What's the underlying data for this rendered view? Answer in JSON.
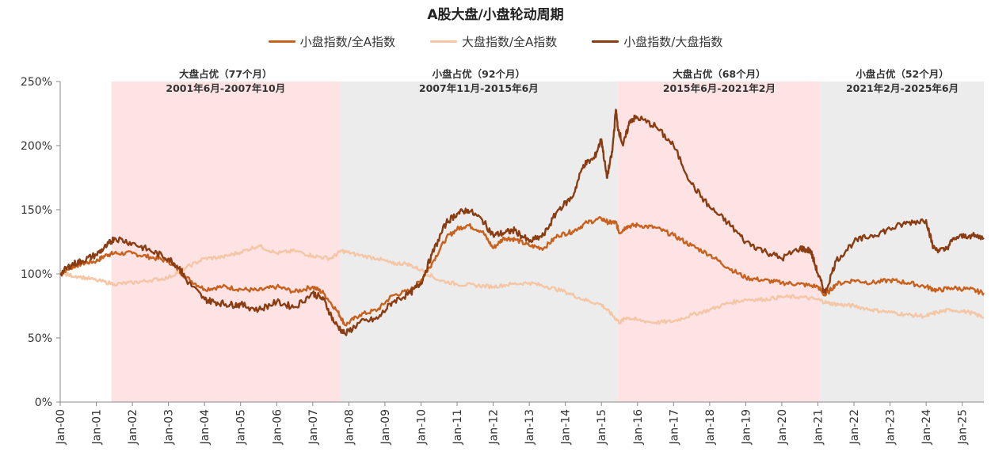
{
  "chart_data": {
    "type": "line",
    "title": "A股大盘/小盘轮动周期",
    "xlabel": "",
    "ylabel": "",
    "ylim": [
      0,
      250
    ],
    "yticks": [
      "0%",
      "50%",
      "100%",
      "150%",
      "200%",
      "250%"
    ],
    "xlim": [
      2000.0,
      2025.6
    ],
    "xticks": [
      "Jan-00",
      "Jan-01",
      "Jan-02",
      "Jan-03",
      "Jan-04",
      "Jan-05",
      "Jan-06",
      "Jan-07",
      "Jan-08",
      "Jan-09",
      "Jan-10",
      "Jan-11",
      "Jan-12",
      "Jan-13",
      "Jan-14",
      "Jan-15",
      "Jan-16",
      "Jan-17",
      "Jan-18",
      "Jan-19",
      "Jan-20",
      "Jan-21",
      "Jan-22",
      "Jan-23",
      "Jan-24",
      "Jan-25"
    ],
    "grid": false,
    "legend_position": "top-center",
    "periods": [
      {
        "start": 2001.42,
        "end": 2007.75,
        "color": "#fde3e3",
        "label1": "大盘占优（77个月）",
        "label2": "2001年6月-2007年10月"
      },
      {
        "start": 2007.75,
        "end": 2015.45,
        "color": "#ececec",
        "label1": "小盘占优（92个月）",
        "label2": "2007年11月-2015年6月"
      },
      {
        "start": 2015.45,
        "end": 2021.08,
        "color": "#fde3e3",
        "label1": "大盘占优（68个月）",
        "label2": "2015年6月-2021年2月"
      },
      {
        "start": 2021.08,
        "end": 2025.6,
        "color": "#ececec",
        "label1": "小盘占优（52个月）",
        "label2": "2021年2月-2025年6月"
      }
    ],
    "series": [
      {
        "name": "小盘指数/全A指数",
        "color": "#c8611e",
        "points": [
          [
            2000,
            100
          ],
          [
            2000.3,
            105
          ],
          [
            2000.6,
            108
          ],
          [
            2001,
            110
          ],
          [
            2001.3,
            115
          ],
          [
            2001.5,
            116
          ],
          [
            2002,
            116
          ],
          [
            2002.5,
            113
          ],
          [
            2003,
            110
          ],
          [
            2003.5,
            97
          ],
          [
            2004,
            88
          ],
          [
            2004.5,
            90
          ],
          [
            2005,
            88
          ],
          [
            2005.5,
            87
          ],
          [
            2006,
            90
          ],
          [
            2006.5,
            86
          ],
          [
            2007,
            90
          ],
          [
            2007.3,
            85
          ],
          [
            2007.7,
            70
          ],
          [
            2007.9,
            60
          ],
          [
            2008.3,
            68
          ],
          [
            2008.8,
            72
          ],
          [
            2009.2,
            83
          ],
          [
            2009.7,
            87
          ],
          [
            2010,
            95
          ],
          [
            2010.3,
            108
          ],
          [
            2010.7,
            128
          ],
          [
            2011,
            135
          ],
          [
            2011.3,
            138
          ],
          [
            2011.7,
            133
          ],
          [
            2012,
            120
          ],
          [
            2012.3,
            128
          ],
          [
            2012.6,
            127
          ],
          [
            2013,
            122
          ],
          [
            2013.4,
            120
          ],
          [
            2013.8,
            130
          ],
          [
            2014.2,
            133
          ],
          [
            2014.6,
            140
          ],
          [
            2015,
            143
          ],
          [
            2015.2,
            140
          ],
          [
            2015.4,
            140
          ],
          [
            2015.5,
            132
          ],
          [
            2015.7,
            137
          ],
          [
            2016,
            138
          ],
          [
            2016.5,
            136
          ],
          [
            2017,
            130
          ],
          [
            2017.5,
            122
          ],
          [
            2018,
            115
          ],
          [
            2018.5,
            105
          ],
          [
            2019,
            97
          ],
          [
            2019.5,
            95
          ],
          [
            2020,
            93
          ],
          [
            2020.5,
            92
          ],
          [
            2021,
            90
          ],
          [
            2021.2,
            83
          ],
          [
            2021.5,
            92
          ],
          [
            2022,
            95
          ],
          [
            2022.5,
            93
          ],
          [
            2023,
            95
          ],
          [
            2023.5,
            93
          ],
          [
            2024,
            90
          ],
          [
            2024.3,
            87
          ],
          [
            2024.7,
            89
          ],
          [
            2025.2,
            88
          ],
          [
            2025.6,
            85
          ]
        ]
      },
      {
        "name": "大盘指数/全A指数",
        "color": "#f5c6a5",
        "points": [
          [
            2000,
            100
          ],
          [
            2000.5,
            98
          ],
          [
            2001,
            95
          ],
          [
            2001.5,
            92
          ],
          [
            2002,
            93
          ],
          [
            2002.5,
            95
          ],
          [
            2003,
            97
          ],
          [
            2003.5,
            105
          ],
          [
            2004,
            112
          ],
          [
            2004.5,
            113
          ],
          [
            2005,
            117
          ],
          [
            2005.5,
            122
          ],
          [
            2006,
            116
          ],
          [
            2006.5,
            118
          ],
          [
            2007,
            114
          ],
          [
            2007.5,
            112
          ],
          [
            2007.8,
            118
          ],
          [
            2008.2,
            115
          ],
          [
            2008.8,
            112
          ],
          [
            2009.2,
            108
          ],
          [
            2009.6,
            108
          ],
          [
            2010,
            103
          ],
          [
            2010.5,
            95
          ],
          [
            2011,
            92
          ],
          [
            2011.5,
            91
          ],
          [
            2012,
            90
          ],
          [
            2012.5,
            92
          ],
          [
            2013,
            93
          ],
          [
            2013.5,
            90
          ],
          [
            2014,
            86
          ],
          [
            2014.5,
            80
          ],
          [
            2015,
            76
          ],
          [
            2015.3,
            68
          ],
          [
            2015.5,
            62
          ],
          [
            2015.7,
            66
          ],
          [
            2016,
            64
          ],
          [
            2016.5,
            62
          ],
          [
            2017,
            63
          ],
          [
            2017.5,
            68
          ],
          [
            2018,
            72
          ],
          [
            2018.5,
            77
          ],
          [
            2019,
            80
          ],
          [
            2019.5,
            80
          ],
          [
            2020,
            82
          ],
          [
            2020.5,
            82
          ],
          [
            2021,
            80
          ],
          [
            2021.3,
            77
          ],
          [
            2021.6,
            76
          ],
          [
            2022,
            75
          ],
          [
            2022.5,
            72
          ],
          [
            2023,
            70
          ],
          [
            2023.5,
            68
          ],
          [
            2024,
            67
          ],
          [
            2024.3,
            70
          ],
          [
            2024.7,
            72
          ],
          [
            2025.2,
            70
          ],
          [
            2025.6,
            66
          ]
        ]
      },
      {
        "name": "小盘指数/大盘指数",
        "color": "#8a3c12",
        "points": [
          [
            2000,
            100
          ],
          [
            2000.3,
            107
          ],
          [
            2000.6,
            110
          ],
          [
            2001,
            115
          ],
          [
            2001.3,
            122
          ],
          [
            2001.5,
            128
          ],
          [
            2002,
            124
          ],
          [
            2002.5,
            118
          ],
          [
            2003,
            112
          ],
          [
            2003.3,
            105
          ],
          [
            2003.5,
            95
          ],
          [
            2004,
            80
          ],
          [
            2004.3,
            78
          ],
          [
            2004.7,
            76
          ],
          [
            2005,
            76
          ],
          [
            2005.5,
            72
          ],
          [
            2006,
            78
          ],
          [
            2006.5,
            74
          ],
          [
            2007,
            85
          ],
          [
            2007.3,
            80
          ],
          [
            2007.6,
            62
          ],
          [
            2007.9,
            53
          ],
          [
            2008.3,
            62
          ],
          [
            2008.8,
            65
          ],
          [
            2009.2,
            78
          ],
          [
            2009.7,
            85
          ],
          [
            2010,
            93
          ],
          [
            2010.3,
            115
          ],
          [
            2010.7,
            140
          ],
          [
            2011,
            147
          ],
          [
            2011.3,
            150
          ],
          [
            2011.7,
            142
          ],
          [
            2012,
            130
          ],
          [
            2012.3,
            132
          ],
          [
            2012.6,
            134
          ],
          [
            2013,
            125
          ],
          [
            2013.4,
            130
          ],
          [
            2013.8,
            150
          ],
          [
            2014.2,
            160
          ],
          [
            2014.5,
            185
          ],
          [
            2014.8,
            190
          ],
          [
            2015,
            205
          ],
          [
            2015.15,
            175
          ],
          [
            2015.3,
            195
          ],
          [
            2015.4,
            228
          ],
          [
            2015.45,
            215
          ],
          [
            2015.6,
            200
          ],
          [
            2015.8,
            220
          ],
          [
            2016,
            222
          ],
          [
            2016.5,
            215
          ],
          [
            2017,
            200
          ],
          [
            2017.5,
            170
          ],
          [
            2018,
            152
          ],
          [
            2018.5,
            140
          ],
          [
            2019,
            125
          ],
          [
            2019.5,
            118
          ],
          [
            2020,
            112
          ],
          [
            2020.5,
            120
          ],
          [
            2020.8,
            118
          ],
          [
            2021,
            100
          ],
          [
            2021.2,
            85
          ],
          [
            2021.5,
            110
          ],
          [
            2022,
            125
          ],
          [
            2022.5,
            130
          ],
          [
            2023,
            135
          ],
          [
            2023.5,
            140
          ],
          [
            2024,
            142
          ],
          [
            2024.2,
            120
          ],
          [
            2024.5,
            118
          ],
          [
            2024.8,
            128
          ],
          [
            2025.2,
            130
          ],
          [
            2025.6,
            128
          ]
        ]
      }
    ]
  }
}
